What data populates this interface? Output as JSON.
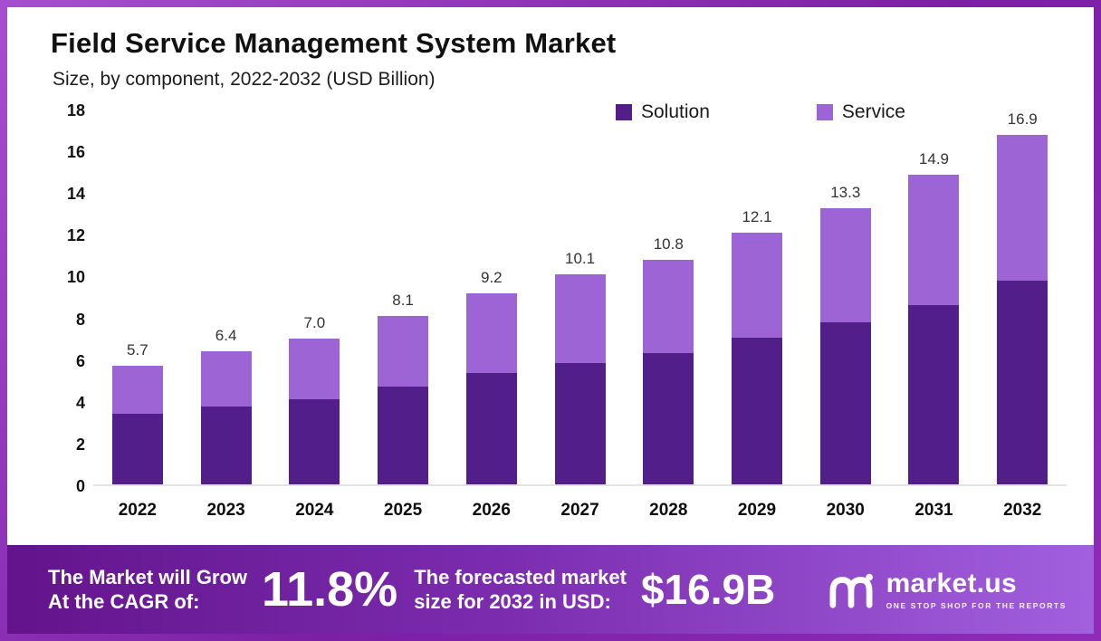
{
  "header": {
    "title": "Field Service Management System Market",
    "subtitle": "Size, by component, 2022-2032 (USD Billion)"
  },
  "chart": {
    "legend": [
      {
        "label": "Solution",
        "color": "#521e8a"
      },
      {
        "label": "Service",
        "color": "#9d64d6"
      }
    ]
  },
  "chart_data": {
    "type": "bar",
    "stacked": true,
    "title": "Field Service Management System Market",
    "subtitle": "Size, by component, 2022-2032 (USD Billion)",
    "unit": "USD Billion",
    "categories": [
      "2022",
      "2023",
      "2024",
      "2025",
      "2026",
      "2027",
      "2028",
      "2029",
      "2030",
      "2031",
      "2032"
    ],
    "series": [
      {
        "name": "Solution",
        "values": [
          3.4,
          3.75,
          4.1,
          4.7,
          5.35,
          5.85,
          6.3,
          7.05,
          7.8,
          8.65,
          9.85
        ]
      },
      {
        "name": "Service",
        "values": [
          2.3,
          2.65,
          2.9,
          3.4,
          3.85,
          4.25,
          4.5,
          5.05,
          5.5,
          6.25,
          7.05
        ]
      }
    ],
    "totals": [
      5.7,
      6.4,
      7.0,
      8.1,
      9.2,
      10.1,
      10.8,
      12.1,
      13.3,
      14.9,
      16.9
    ],
    "total_labels": [
      "5.7",
      "6.4",
      "7.0",
      "8.1",
      "9.2",
      "10.1",
      "10.8",
      "12.1",
      "13.3",
      "14.9",
      "16.9"
    ],
    "ylim": [
      0,
      18
    ],
    "yticks": [
      0,
      2,
      4,
      6,
      8,
      10,
      12,
      14,
      16,
      18
    ],
    "legend_position": "top-right",
    "grid": false
  },
  "banner": {
    "cagr_label_line1": "The Market will Grow",
    "cagr_label_line2": "At the CAGR of:",
    "cagr_value": "11.8%",
    "forecast_label_line1": "The forecasted market",
    "forecast_label_line2": "size for 2032 in USD:",
    "forecast_value": "$16.9B",
    "logo_text": "market.us",
    "logo_tagline": "ONE STOP SHOP FOR THE REPORTS"
  },
  "colors": {
    "solution_bar": "#521e8a",
    "service_bar": "#9d64d6",
    "frame_border": "#8a2bb5",
    "banner_gradient_start": "#63148c",
    "banner_gradient_end": "#a160dd"
  }
}
